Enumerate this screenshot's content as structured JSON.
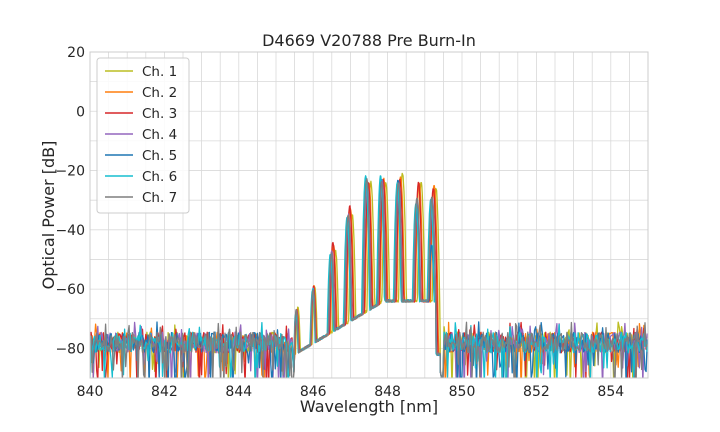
{
  "chart_data": {
    "type": "line",
    "title": "D4669 V20788 Pre Burn-In",
    "xlabel": "Wavelength [nm]",
    "ylabel": "Optical Power [dB]",
    "xlim": [
      840,
      855
    ],
    "ylim": [
      -90,
      20
    ],
    "x_ticks": [
      840,
      842,
      844,
      846,
      848,
      850,
      852,
      854
    ],
    "x_tick_labels": [
      "840",
      "842",
      "844",
      "846",
      "848",
      "850",
      "852",
      "854"
    ],
    "x_minor_step": 0.5,
    "y_ticks": [
      -80,
      -60,
      -40,
      -20,
      0,
      20
    ],
    "y_tick_labels": [
      "−80",
      "−60",
      "−40",
      "−20",
      "0",
      "20"
    ],
    "y_minor_step": 10,
    "grid": true,
    "legend_position": "top-left",
    "noise_floor_db": -78,
    "series": [
      {
        "name": "Ch. 1",
        "color": "#bcbd22",
        "peak_offset_nm": 0.1,
        "peaks": [
          [
            845.55,
            -66
          ],
          [
            846.0,
            -59
          ],
          [
            846.5,
            -47
          ],
          [
            846.95,
            -35
          ],
          [
            847.45,
            -24
          ],
          [
            847.85,
            -24
          ],
          [
            848.3,
            -21
          ],
          [
            848.8,
            -24
          ],
          [
            849.2,
            -26
          ]
        ]
      },
      {
        "name": "Ch. 2",
        "color": "#ff7f0e",
        "peak_offset_nm": 0.05,
        "peaks": [
          [
            845.55,
            -67
          ],
          [
            846.0,
            -59
          ],
          [
            846.5,
            -45
          ],
          [
            846.95,
            -33
          ],
          [
            847.45,
            -24
          ],
          [
            847.85,
            -23
          ],
          [
            848.3,
            -22
          ],
          [
            848.8,
            -24
          ],
          [
            849.2,
            -25
          ]
        ]
      },
      {
        "name": "Ch. 3",
        "color": "#d62728",
        "peak_offset_nm": 0.03,
        "peaks": [
          [
            845.55,
            -67
          ],
          [
            846.0,
            -59
          ],
          [
            846.5,
            -44
          ],
          [
            846.95,
            -32
          ],
          [
            847.45,
            -24
          ],
          [
            847.85,
            -23
          ],
          [
            848.3,
            -23
          ],
          [
            848.8,
            -24
          ],
          [
            849.2,
            -26
          ]
        ]
      },
      {
        "name": "Ch. 4",
        "color": "#9467bd",
        "peak_offset_nm": 0.0,
        "peaks": [
          [
            845.55,
            -67
          ],
          [
            846.0,
            -60
          ],
          [
            846.5,
            -47
          ],
          [
            846.95,
            -35
          ],
          [
            847.45,
            -24
          ],
          [
            847.85,
            -23
          ],
          [
            848.3,
            -24
          ],
          [
            848.8,
            -30
          ],
          [
            849.2,
            -29
          ]
        ]
      },
      {
        "name": "Ch. 5",
        "color": "#1f77b4",
        "peak_offset_nm": -0.02,
        "peaks": [
          [
            845.55,
            -68
          ],
          [
            846.0,
            -60
          ],
          [
            846.5,
            -49
          ],
          [
            846.95,
            -37
          ],
          [
            847.45,
            -23
          ],
          [
            847.85,
            -23
          ],
          [
            848.3,
            -23
          ],
          [
            848.8,
            -33
          ],
          [
            849.2,
            -45
          ]
        ]
      },
      {
        "name": "Ch. 6",
        "color": "#17becf",
        "peak_offset_nm": -0.04,
        "peaks": [
          [
            845.55,
            -68
          ],
          [
            846.0,
            -60
          ],
          [
            846.5,
            -48
          ],
          [
            846.95,
            -36
          ],
          [
            847.45,
            -22
          ],
          [
            847.85,
            -22
          ],
          [
            848.3,
            -24
          ],
          [
            848.8,
            -31
          ],
          [
            849.2,
            -30
          ]
        ]
      },
      {
        "name": "Ch. 7",
        "color": "#7f7f7f",
        "peak_offset_nm": -0.01,
        "peaks": [
          [
            845.55,
            -67
          ],
          [
            846.0,
            -60
          ],
          [
            846.5,
            -48
          ],
          [
            846.95,
            -35
          ],
          [
            847.45,
            -23
          ],
          [
            847.85,
            -24
          ],
          [
            848.3,
            -24
          ],
          [
            848.8,
            -29
          ],
          [
            849.2,
            -29
          ]
        ]
      }
    ]
  }
}
